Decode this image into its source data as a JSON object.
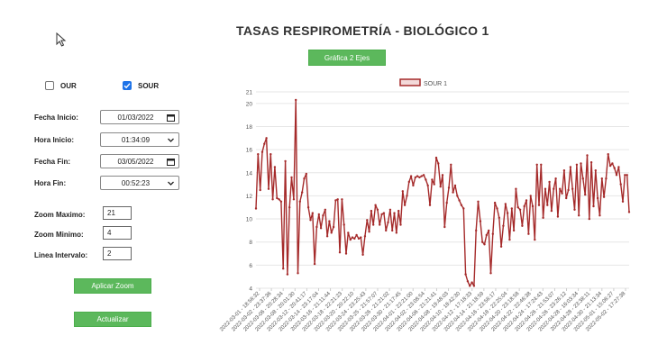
{
  "page": {
    "title": "TASAS RESPIROMETRÍA - BIOLÓGICO 1"
  },
  "toolbar": {
    "two_axes_label": "Gráfica 2 Ejes"
  },
  "filters": {
    "our_label": "OUR",
    "our_checked": false,
    "sour_label": "SOUR",
    "sour_checked": true
  },
  "form": {
    "fecha_inicio_label": "Fecha Inicio:",
    "fecha_inicio_value": "01/03/2022",
    "hora_inicio_label": "Hora Inicio:",
    "hora_inicio_value": "01:34:09",
    "fecha_fin_label": "Fecha Fin:",
    "fecha_fin_value": "03/05/2022",
    "hora_fin_label": "Hora Fin:",
    "hora_fin_value": "00:52:23",
    "zoom_max_label": "Zoom Maximo:",
    "zoom_max_value": "21",
    "zoom_min_label": "Zoom Minimo:",
    "zoom_min_value": "4",
    "linea_intervalo_label": "Linea Intervalo:",
    "linea_intervalo_value": "2"
  },
  "buttons": {
    "apply_zoom": "Aplicar Zoom",
    "update": "Actualizar"
  },
  "icons": {
    "cursor": "arrow-cursor-icon",
    "calendar": "calendar-icon",
    "dropdown": "chevron-down-icon",
    "check": "check-icon"
  },
  "colors": {
    "accent_green": "#5cb85c",
    "series": "#a52a2a",
    "checkbox": "#1e73e8"
  },
  "chart_data": {
    "type": "line",
    "legend_position": "top",
    "grid": true,
    "ylim": [
      4,
      21
    ],
    "yticks": [
      4,
      6,
      8,
      10,
      12,
      14,
      16,
      18,
      20,
      21
    ],
    "x_labels": [
      "2022-03-01 - 18:56:32",
      "2022-03-02 - 23:37:36",
      "2022-03-06 - 20:28:34",
      "2022-03-08 - 20:01:30",
      "2022-03-12 - 20:41:17",
      "2022-03-14 - 23:17:04",
      "2022-03-16 - 21:11:44",
      "2022-03-18 - 22:21:23",
      "2022-03-20 - 20:22:10",
      "2022-03-24 - 23:25:43",
      "2022-03-25 - 21:57:07",
      "2022-03-26 - 21:21:02",
      "2022-03-30 - 21:17:45",
      "2022-04-01 - 22:21:00",
      "2022-04-02 - 23:08:54",
      "2022-04-06 - 21:21:41",
      "2022-04-08 - 19:48:03",
      "2022-04-10 - 18:42:30",
      "2022-04-12 - 17:18:33",
      "2022-04-14 - 21:18:59",
      "2022-04-16 - 23:56:17",
      "2022-04-18 - 22:25:04",
      "2022-04-20 - 23:18:58",
      "2022-04-22 - 22:46:38",
      "2022-04-24 - 17:24:43",
      "2022-04-26 - 21:53:07",
      "2022-04-26 - 23:26:12",
      "2022-04-28 - 16:03:34",
      "2022-04-28 - 23:38:11",
      "2022-04-30 - 21:13:34",
      "2022-05-01 - 15:06:27",
      "2022-05-02 - 17:27:38"
    ],
    "series": [
      {
        "name": "SOUR 1",
        "values": [
          10.9,
          15.6,
          12.5,
          15.8,
          16.5,
          17.0,
          12.6,
          15.6,
          11.7,
          14.5,
          11.8,
          11.7,
          11.5,
          5.7,
          15.0,
          5.2,
          11.0,
          13.6,
          11.7,
          20.3,
          5.3,
          11.5,
          12.3,
          13.5,
          13.9,
          11.0,
          9.9,
          10.5,
          6.1,
          9.3,
          10.4,
          9.2,
          10.3,
          10.8,
          8.5,
          9.8,
          8.8,
          9.3,
          11.6,
          11.7,
          7.1,
          11.7,
          9.5,
          7.0,
          8.8,
          8.2,
          8.4,
          8.3,
          8.6,
          8.3,
          8.4,
          6.9,
          8.5,
          9.9,
          8.9,
          10.7,
          9.5,
          11.2,
          10.8,
          9.5,
          10.4,
          10.5,
          9.0,
          9.7,
          10.8,
          9.0,
          10.5,
          8.8,
          10.7,
          9.5,
          12.4,
          11.2,
          12.0,
          13.2,
          13.7,
          12.9,
          13.6,
          13.7,
          13.6,
          13.7,
          13.8,
          13.4,
          12.9,
          11.2,
          13.4,
          13.0,
          15.3,
          14.8,
          12.8,
          13.8,
          9.3,
          11.4,
          12.7,
          14.7,
          12.3,
          12.9,
          12.0,
          11.6,
          11.2,
          10.9,
          5.2,
          4.6,
          4.2,
          4.5,
          4.2,
          9.0,
          11.5,
          9.8,
          8.0,
          7.8,
          8.6,
          9.0,
          5.3,
          8.7,
          11.4,
          10.9,
          10.1,
          7.6,
          9.4,
          11.3,
          10.5,
          8.2,
          10.9,
          9.0,
          12.6,
          11.0,
          10.8,
          9.4,
          11.1,
          11.6,
          8.7,
          12.0,
          11.1,
          8.2,
          14.7,
          11.2,
          14.7,
          10.1,
          12.6,
          11.2,
          13.2,
          10.7,
          12.6,
          13.5,
          10.2,
          12.6,
          12.2,
          14.2,
          11.8,
          12.5,
          14.5,
          12.6,
          10.8,
          14.7,
          10.3,
          14.8,
          13.5,
          12.1,
          15.5,
          10.0,
          14.9,
          11.1,
          14.2,
          11.8,
          10.3,
          13.5,
          11.9,
          13.5,
          15.6,
          14.6,
          14.8,
          14.4,
          13.8,
          14.5,
          13.0,
          11.5,
          13.8,
          13.8,
          10.6
        ]
      }
    ]
  }
}
